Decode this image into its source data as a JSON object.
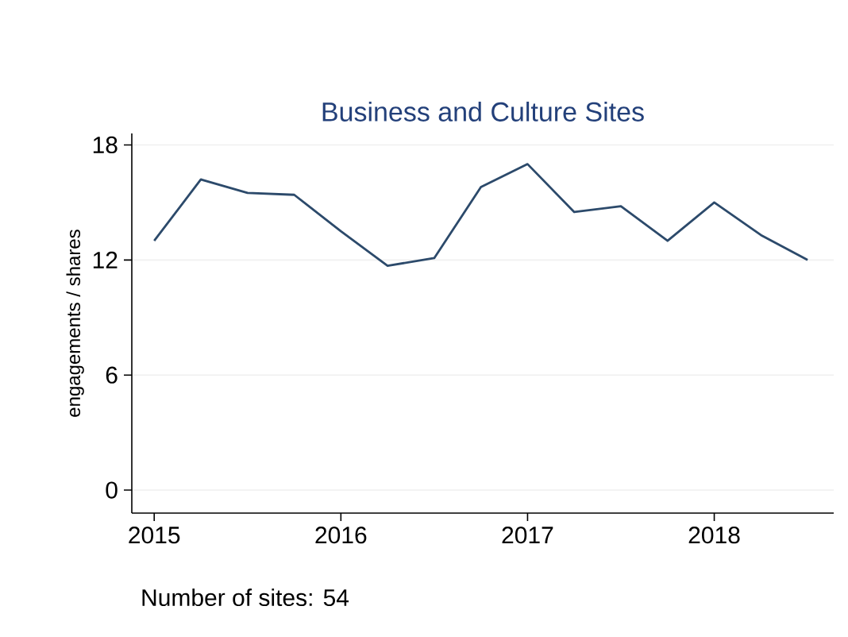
{
  "chart_data": {
    "type": "line",
    "title": "Business and Culture Sites",
    "ylabel": "engagements / shares",
    "annotations": [
      "Number of sites: 54"
    ],
    "x": [
      2015,
      2015.25,
      2015.5,
      2015.75,
      2016,
      2016.25,
      2016.5,
      2016.75,
      2017,
      2017.25,
      2017.5,
      2017.75,
      2018,
      2018.25,
      2018.5
    ],
    "series": [
      {
        "color": "#2c4a6b",
        "values": [
          13.0,
          16.2,
          15.5,
          15.4,
          13.5,
          11.7,
          12.1,
          15.8,
          17.0,
          14.5,
          14.8,
          13.0,
          15.0,
          13.3,
          12.0
        ]
      }
    ],
    "xlim": [
      2014.88,
      2018.64
    ],
    "ylim": [
      -1.2,
      18.6
    ],
    "xticks": [
      2015,
      2016,
      2017,
      2018
    ],
    "yticks": [
      0,
      6,
      12,
      18
    ],
    "grid": "y",
    "marker": "none",
    "line_style": "solid"
  }
}
